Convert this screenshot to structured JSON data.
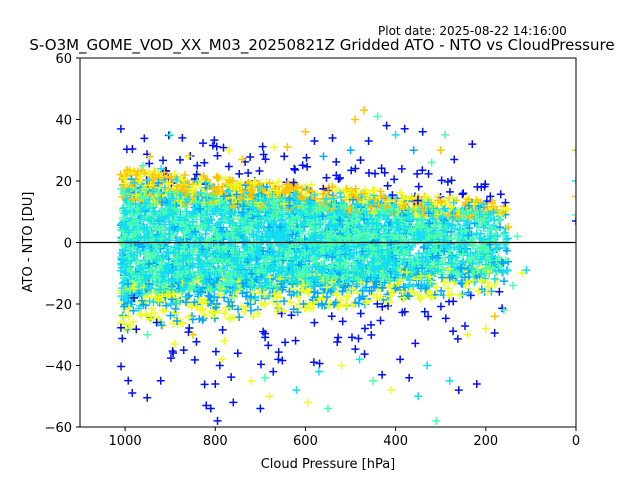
{
  "figure": {
    "plot_date": "Plot date: 2025-08-22 14:16:00"
  },
  "chart_data": {
    "type": "scatter",
    "title": "S-O3M_GOME_VOD_XX_M03_20250821Z Gridded ATO - NTO vs CloudPressure",
    "xlabel": "Cloud Pressure [hPa]",
    "ylabel": "ATO - NTO [DU]",
    "xlim": [
      1100,
      0
    ],
    "ylim": [
      -60,
      60
    ],
    "x_ticks": [
      1000,
      800,
      600,
      400,
      200,
      0
    ],
    "y_ticks": [
      -60,
      -40,
      -20,
      0,
      20,
      40,
      60
    ],
    "x_tick_labels": [
      "1000",
      "800",
      "600",
      "400",
      "200",
      "0"
    ],
    "y_tick_labels": [
      "−60",
      "−40",
      "−20",
      "0",
      "20",
      "40",
      "60"
    ],
    "x_axis_reversed": true,
    "grid": false,
    "legend": "none",
    "marker": "+",
    "zero_line": {
      "y": 0,
      "color": "#000000"
    },
    "color_classes": [
      {
        "color": "#4dffaa",
        "note_count": 1
      },
      {
        "color": "#14ddf0",
        "note_count": 1
      },
      {
        "color": "#00a6ff",
        "note_count": 1
      },
      {
        "color": "#ffc400",
        "note_count": 1
      },
      {
        "color": "#f0ff1a",
        "note_count": 1
      },
      {
        "color": "#0010ff",
        "note_count": 1
      }
    ],
    "points": [
      {
        "x": 1000,
        "y": -8,
        "c": 1
      },
      {
        "x": 990,
        "y": 12,
        "c": 0
      },
      {
        "x": 980,
        "y": -18,
        "c": 5
      },
      {
        "x": 975,
        "y": 22,
        "c": 3
      },
      {
        "x": 960,
        "y": 25,
        "c": 0
      },
      {
        "x": 950,
        "y": -30,
        "c": 0
      },
      {
        "x": 945,
        "y": 28,
        "c": 3
      },
      {
        "x": 930,
        "y": -26,
        "c": 5
      },
      {
        "x": 920,
        "y": 24,
        "c": 1
      },
      {
        "x": 900,
        "y": 35,
        "c": 0
      },
      {
        "x": 890,
        "y": -33,
        "c": 4
      },
      {
        "x": 870,
        "y": -35,
        "c": 5
      },
      {
        "x": 860,
        "y": 28,
        "c": 4
      },
      {
        "x": 850,
        "y": -30,
        "c": 3
      },
      {
        "x": 840,
        "y": 25,
        "c": 5
      },
      {
        "x": 820,
        "y": -53,
        "c": 5
      },
      {
        "x": 810,
        "y": -54,
        "c": 5
      },
      {
        "x": 800,
        "y": -46,
        "c": 5
      },
      {
        "x": 795,
        "y": -58,
        "c": 5
      },
      {
        "x": 790,
        "y": -40,
        "c": 5
      },
      {
        "x": 785,
        "y": -38,
        "c": 4
      },
      {
        "x": 780,
        "y": -32,
        "c": 4
      },
      {
        "x": 770,
        "y": 30,
        "c": 4
      },
      {
        "x": 760,
        "y": -52,
        "c": 5
      },
      {
        "x": 750,
        "y": -36,
        "c": 5
      },
      {
        "x": 740,
        "y": 27,
        "c": 3
      },
      {
        "x": 720,
        "y": -45,
        "c": 4
      },
      {
        "x": 700,
        "y": -54,
        "c": 5
      },
      {
        "x": 690,
        "y": -44,
        "c": 0
      },
      {
        "x": 680,
        "y": -50,
        "c": 4
      },
      {
        "x": 670,
        "y": 31,
        "c": 4
      },
      {
        "x": 660,
        "y": -38,
        "c": 5
      },
      {
        "x": 640,
        "y": 31,
        "c": 3
      },
      {
        "x": 620,
        "y": -48,
        "c": 1
      },
      {
        "x": 600,
        "y": 36,
        "c": 3
      },
      {
        "x": 595,
        "y": -52,
        "c": 4
      },
      {
        "x": 580,
        "y": 33,
        "c": 5
      },
      {
        "x": 570,
        "y": -42,
        "c": 1
      },
      {
        "x": 560,
        "y": 28,
        "c": 2
      },
      {
        "x": 550,
        "y": -54,
        "c": 0
      },
      {
        "x": 540,
        "y": 34,
        "c": 5
      },
      {
        "x": 520,
        "y": -40,
        "c": 4
      },
      {
        "x": 500,
        "y": 30,
        "c": 2
      },
      {
        "x": 490,
        "y": 40,
        "c": 3
      },
      {
        "x": 480,
        "y": -38,
        "c": 1
      },
      {
        "x": 470,
        "y": 43,
        "c": 3
      },
      {
        "x": 460,
        "y": 33,
        "c": 5
      },
      {
        "x": 450,
        "y": -45,
        "c": 0
      },
      {
        "x": 440,
        "y": 41,
        "c": 0
      },
      {
        "x": 430,
        "y": -43,
        "c": 5
      },
      {
        "x": 420,
        "y": 38,
        "c": 5
      },
      {
        "x": 410,
        "y": -48,
        "c": 4
      },
      {
        "x": 400,
        "y": 35,
        "c": 1
      },
      {
        "x": 390,
        "y": -38,
        "c": 5
      },
      {
        "x": 380,
        "y": 37,
        "c": 5
      },
      {
        "x": 370,
        "y": -44,
        "c": 5
      },
      {
        "x": 360,
        "y": 30,
        "c": 2
      },
      {
        "x": 350,
        "y": -50,
        "c": 1
      },
      {
        "x": 340,
        "y": 36,
        "c": 5
      },
      {
        "x": 330,
        "y": -40,
        "c": 1
      },
      {
        "x": 320,
        "y": 26,
        "c": 0
      },
      {
        "x": 310,
        "y": -58,
        "c": 0
      },
      {
        "x": 300,
        "y": 30,
        "c": 3
      },
      {
        "x": 290,
        "y": 35,
        "c": 0
      },
      {
        "x": 280,
        "y": -45,
        "c": 1
      },
      {
        "x": 270,
        "y": 27,
        "c": 5
      },
      {
        "x": 260,
        "y": -48,
        "c": 5
      },
      {
        "x": 250,
        "y": 16,
        "c": 5
      },
      {
        "x": 240,
        "y": -30,
        "c": 4
      },
      {
        "x": 230,
        "y": 32,
        "c": 5
      },
      {
        "x": 220,
        "y": -46,
        "c": 5
      },
      {
        "x": 210,
        "y": 18,
        "c": 5
      },
      {
        "x": 200,
        "y": -28,
        "c": 4
      },
      {
        "x": 190,
        "y": 15,
        "c": 5
      },
      {
        "x": 180,
        "y": -24,
        "c": 3
      },
      {
        "x": 170,
        "y": -16,
        "c": 5
      },
      {
        "x": 160,
        "y": -22,
        "c": 0
      },
      {
        "x": 150,
        "y": 5,
        "c": 3
      },
      {
        "x": 140,
        "y": -14,
        "c": 0
      },
      {
        "x": 130,
        "y": 2,
        "c": 0
      },
      {
        "x": 120,
        "y": -10,
        "c": 4
      },
      {
        "x": 110,
        "y": -9,
        "c": 1
      },
      {
        "x": 0,
        "y": 30,
        "c": 3
      },
      {
        "x": 0,
        "y": 20,
        "c": 1
      },
      {
        "x": 0,
        "y": 15,
        "c": 3
      },
      {
        "x": 0,
        "y": 9,
        "c": 0
      },
      {
        "x": 0,
        "y": 7,
        "c": 5
      }
    ],
    "cloud": {
      "x_range": [
        1010,
        150
      ],
      "core_center": 0,
      "core_half_width": 22,
      "tail_low": -45,
      "tail_high": 32
    }
  }
}
